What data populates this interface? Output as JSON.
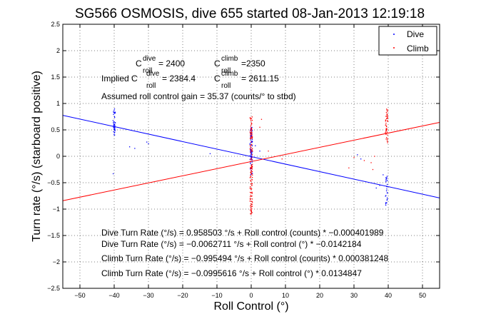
{
  "chart_data": {
    "type": "scatter",
    "title": "SG566 OSMOSIS, dive 655 started 08-Jan-2013 12:19:18",
    "xlabel": "Roll Control (°)",
    "ylabel": "Turn rate (°/s) (starboard positive)",
    "xlim": [
      -55,
      55
    ],
    "ylim": [
      -2.5,
      2.5
    ],
    "xticks": [
      -50,
      -40,
      -30,
      -20,
      -10,
      0,
      10,
      20,
      30,
      40,
      50
    ],
    "yticks": [
      -2.5,
      -2,
      -1.5,
      -1,
      -0.5,
      0,
      0.5,
      1,
      1.5,
      2,
      2.5
    ],
    "xtick_labels": [
      "−50",
      "−40",
      "−30",
      "−20",
      "−10",
      "0",
      "10",
      "20",
      "30",
      "40",
      "50"
    ],
    "ytick_labels": [
      "−2.5",
      "−2",
      "−1.5",
      "−1",
      "−0.5",
      "0",
      "0.5",
      "1",
      "1.5",
      "2",
      "2.5"
    ],
    "grid": "dotted",
    "legend_position": "top-right",
    "series": [
      {
        "name": "Dive",
        "color": "#0000ff",
        "clusters": [
          {
            "x": -40,
            "y_min": 0.4,
            "y_max": 0.9,
            "n": 40
          },
          {
            "x": 0,
            "y_min": -0.35,
            "y_max": 0.55,
            "n": 80
          },
          {
            "x": 39.5,
            "y_min": -0.95,
            "y_max": -0.35,
            "n": 25
          }
        ],
        "points": [
          [
            -40.3,
            -0.33
          ],
          [
            -35.5,
            0.18
          ],
          [
            -34,
            0.15
          ],
          [
            -30.5,
            0.27
          ],
          [
            -30,
            0.24
          ],
          [
            -12,
            0.05
          ],
          [
            1.2,
            0.2
          ],
          [
            2.5,
            0.1
          ],
          [
            31,
            0.03
          ],
          [
            32,
            -0.05
          ],
          [
            36.5,
            -0.6
          ],
          [
            37.5,
            -0.55
          ],
          [
            38.5,
            -0.35
          ]
        ]
      },
      {
        "name": "Climb",
        "color": "#ff0000",
        "clusters": [
          {
            "x": 0,
            "y_min": -1.1,
            "y_max": 0.75,
            "n": 140
          },
          {
            "x": 39.5,
            "y_min": 0.25,
            "y_max": 0.9,
            "n": 45
          }
        ],
        "points": [
          [
            2.5,
            0.55
          ],
          [
            3,
            0.7
          ],
          [
            5,
            0.1
          ],
          [
            9,
            -0.05
          ],
          [
            28.5,
            -0.22
          ],
          [
            30,
            -0.02
          ],
          [
            33,
            -0.08
          ],
          [
            35,
            -0.12
          ],
          [
            35.5,
            -0.25
          ],
          [
            36,
            0.0
          ]
        ]
      }
    ],
    "fit_lines": [
      {
        "series": "Dive",
        "color": "#0000ff",
        "x": [
          -55,
          55
        ],
        "y": [
          0.7758,
          -0.7882
        ]
      },
      {
        "series": "Climb",
        "color": "#ff0000",
        "x": [
          -55,
          55
        ],
        "y": [
          -0.8412,
          0.6421
        ]
      }
    ],
    "annotations": {
      "c_dive": {
        "prefix": "C",
        "sup": "dive",
        "sub": "roll",
        "value": " = 2400"
      },
      "c_climb": {
        "prefix": "C",
        "sup": "climb",
        "sub": "roll",
        "value": " =2350"
      },
      "implied_prefix": "Implied C",
      "implied_dive": {
        "sup": "dive",
        "sub": "roll",
        "value": " = 2384.4"
      },
      "implied_climb": {
        "prefix": "C",
        "sup": "climb",
        "sub": "roll",
        "value": " = 2611.15"
      },
      "gain": "Assumed roll control gain = 35.37 (counts/° to stbd)",
      "eq1": "Dive Turn Rate (°/s) = 0.958503 °/s + Roll control (counts) * −0.000401989",
      "eq2": "Dive Turn Rate (°/s) = −0.0062711 °/s + Roll control (°) * −0.0142184",
      "eq3": "Climb Turn Rate (°/s) = −0.995494 °/s + Roll control (counts) * 0.000381248",
      "eq4": "Climb Turn Rate (°/s) = −0.0995616 °/s + Roll control (°) * 0.0134847"
    }
  }
}
